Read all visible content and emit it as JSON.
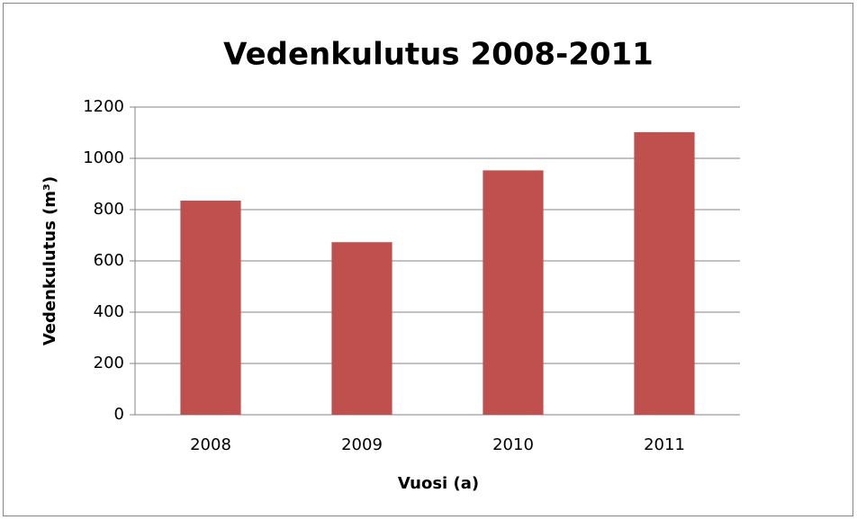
{
  "chart_data": {
    "type": "bar",
    "title": "Vedenkulutus 2008-2011",
    "x_label": "Vuosi (a)",
    "y_label": "Vedenkulutus (m³)",
    "categories": [
      "2008",
      "2009",
      "2010",
      "2011"
    ],
    "values": [
      835,
      673,
      953,
      1102
    ],
    "color": "#c0504d",
    "ylim": [
      0,
      1200
    ],
    "yticks": [
      0,
      200,
      400,
      600,
      800,
      1000,
      1200
    ],
    "grid": true
  }
}
